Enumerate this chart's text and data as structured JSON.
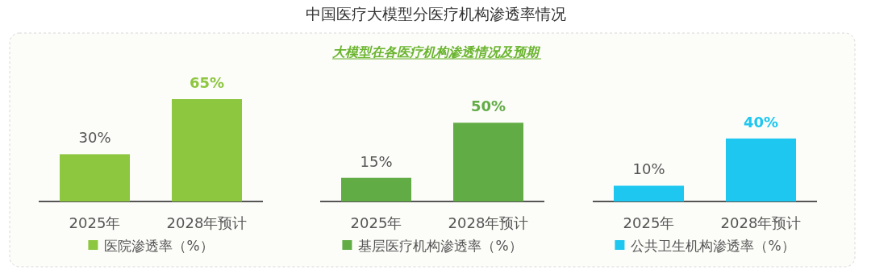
{
  "chart_data": [
    {
      "type": "bar",
      "categories": [
        "2025年",
        "2028年预计"
      ],
      "legend": "bottom",
      "series": [
        {
          "name": "医院渗透率（%）",
          "color": "#8dc63f",
          "values": [
            30,
            65
          ],
          "value_labels": [
            "30%",
            "65%"
          ]
        }
      ]
    },
    {
      "type": "bar",
      "title": "中国医疗大模型分医疗机构渗透率情况",
      "subtitle": "大模型在各医疗机构渗透情况及预期",
      "categories": [
        "2025年",
        "2028年预计"
      ],
      "legend": "bottom",
      "series": [
        {
          "name": "基层医疗机构渗透率（%）",
          "color": "#62ac46",
          "values": [
            15,
            50
          ],
          "value_labels": [
            "15%",
            "50%"
          ]
        }
      ]
    },
    {
      "type": "bar",
      "categories": [
        "2025年",
        "2028年预计"
      ],
      "legend": "bottom",
      "series": [
        {
          "name": "公共卫生机构渗透率（%）",
          "color": "#1ec7f0",
          "values": [
            10,
            40
          ],
          "value_labels": [
            "10%",
            "40%"
          ]
        }
      ]
    }
  ]
}
